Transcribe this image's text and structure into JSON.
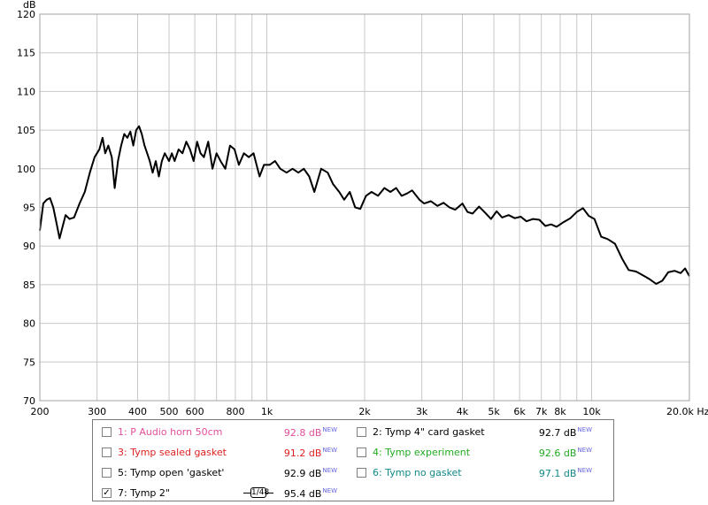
{
  "chart_data": {
    "type": "line",
    "title": "",
    "xlabel": "",
    "ylabel": "dB",
    "x_unit": "Hz",
    "x_scale": "log",
    "xlim": [
      200,
      20000
    ],
    "ylim": [
      70,
      120
    ],
    "grid": true,
    "x_ticks": [
      {
        "v": 200,
        "t": "200"
      },
      {
        "v": 300,
        "t": "300"
      },
      {
        "v": 400,
        "t": "400"
      },
      {
        "v": 500,
        "t": "500"
      },
      {
        "v": 600,
        "t": "600"
      },
      {
        "v": 800,
        "t": "800"
      },
      {
        "v": 1000,
        "t": "1k"
      },
      {
        "v": 2000,
        "t": "2k"
      },
      {
        "v": 3000,
        "t": "3k"
      },
      {
        "v": 4000,
        "t": "4k"
      },
      {
        "v": 5000,
        "t": "5k"
      },
      {
        "v": 6000,
        "t": "6k"
      },
      {
        "v": 7000,
        "t": "7k"
      },
      {
        "v": 8000,
        "t": "8k"
      },
      {
        "v": 10000,
        "t": "10k"
      },
      {
        "v": 20000,
        "t": "20.0k Hz"
      }
    ],
    "x_gridlines": [
      200,
      300,
      400,
      500,
      600,
      700,
      800,
      900,
      1000,
      2000,
      3000,
      4000,
      5000,
      6000,
      7000,
      8000,
      9000,
      10000,
      20000
    ],
    "y_ticks": [
      70,
      75,
      80,
      85,
      90,
      95,
      100,
      105,
      110,
      115,
      120
    ],
    "series": [
      {
        "name": "7: Tymp 2\"",
        "color": "#000000",
        "points": [
          [
            200,
            92
          ],
          [
            205,
            95.5
          ],
          [
            210,
            96
          ],
          [
            215,
            96.2
          ],
          [
            220,
            95
          ],
          [
            225,
            93
          ],
          [
            230,
            91
          ],
          [
            235,
            92.5
          ],
          [
            240,
            94
          ],
          [
            247,
            93.5
          ],
          [
            255,
            93.7
          ],
          [
            265,
            95.5
          ],
          [
            275,
            97
          ],
          [
            285,
            99.5
          ],
          [
            295,
            101.5
          ],
          [
            305,
            102.5
          ],
          [
            312,
            104
          ],
          [
            318,
            102
          ],
          [
            325,
            103
          ],
          [
            333,
            101.5
          ],
          [
            340,
            97.5
          ],
          [
            348,
            101
          ],
          [
            356,
            103
          ],
          [
            364,
            104.5
          ],
          [
            372,
            104
          ],
          [
            380,
            104.8
          ],
          [
            388,
            103
          ],
          [
            396,
            105
          ],
          [
            404,
            105.5
          ],
          [
            412,
            104.5
          ],
          [
            420,
            103
          ],
          [
            428,
            102
          ],
          [
            436,
            101
          ],
          [
            445,
            99.5
          ],
          [
            455,
            101
          ],
          [
            465,
            99
          ],
          [
            475,
            101
          ],
          [
            485,
            102
          ],
          [
            500,
            101
          ],
          [
            510,
            102
          ],
          [
            520,
            101
          ],
          [
            535,
            102.5
          ],
          [
            550,
            102
          ],
          [
            565,
            103.5
          ],
          [
            580,
            102.5
          ],
          [
            595,
            101
          ],
          [
            610,
            103.5
          ],
          [
            625,
            102
          ],
          [
            640,
            101.5
          ],
          [
            660,
            103.5
          ],
          [
            680,
            100
          ],
          [
            700,
            102
          ],
          [
            720,
            101
          ],
          [
            745,
            100
          ],
          [
            770,
            103
          ],
          [
            795,
            102.5
          ],
          [
            820,
            100.5
          ],
          [
            850,
            102
          ],
          [
            880,
            101.5
          ],
          [
            910,
            102
          ],
          [
            950,
            99
          ],
          [
            980,
            100.5
          ],
          [
            1020,
            100.5
          ],
          [
            1060,
            101
          ],
          [
            1100,
            100
          ],
          [
            1150,
            99.5
          ],
          [
            1200,
            100
          ],
          [
            1250,
            99.5
          ],
          [
            1300,
            100
          ],
          [
            1350,
            99
          ],
          [
            1400,
            97
          ],
          [
            1470,
            100
          ],
          [
            1540,
            99.5
          ],
          [
            1600,
            98
          ],
          [
            1670,
            97
          ],
          [
            1730,
            96
          ],
          [
            1800,
            97
          ],
          [
            1870,
            95
          ],
          [
            1940,
            94.8
          ],
          [
            2020,
            96.5
          ],
          [
            2100,
            97
          ],
          [
            2200,
            96.5
          ],
          [
            2300,
            97.5
          ],
          [
            2400,
            97
          ],
          [
            2500,
            97.5
          ],
          [
            2600,
            96.5
          ],
          [
            2700,
            96.8
          ],
          [
            2800,
            97.2
          ],
          [
            2950,
            96
          ],
          [
            3050,
            95.5
          ],
          [
            3200,
            95.8
          ],
          [
            3350,
            95.2
          ],
          [
            3500,
            95.6
          ],
          [
            3650,
            95
          ],
          [
            3800,
            94.7
          ],
          [
            4000,
            95.5
          ],
          [
            4150,
            94.4
          ],
          [
            4300,
            94.2
          ],
          [
            4500,
            95.1
          ],
          [
            4700,
            94.3
          ],
          [
            4900,
            93.5
          ],
          [
            5100,
            94.5
          ],
          [
            5300,
            93.7
          ],
          [
            5550,
            94
          ],
          [
            5800,
            93.6
          ],
          [
            6050,
            93.8
          ],
          [
            6300,
            93.2
          ],
          [
            6600,
            93.5
          ],
          [
            6900,
            93.4
          ],
          [
            7200,
            92.6
          ],
          [
            7500,
            92.8
          ],
          [
            7800,
            92.5
          ],
          [
            8200,
            93.1
          ],
          [
            8600,
            93.6
          ],
          [
            9000,
            94.4
          ],
          [
            9400,
            94.9
          ],
          [
            9800,
            93.9
          ],
          [
            10200,
            93.5
          ],
          [
            10700,
            91.2
          ],
          [
            11200,
            90.9
          ],
          [
            11800,
            90.3
          ],
          [
            12400,
            88.4
          ],
          [
            13000,
            86.9
          ],
          [
            13700,
            86.7
          ],
          [
            14400,
            86.2
          ],
          [
            15100,
            85.7
          ],
          [
            15800,
            85.1
          ],
          [
            16500,
            85.5
          ],
          [
            17200,
            86.6
          ],
          [
            18000,
            86.8
          ],
          [
            18800,
            86.5
          ],
          [
            19400,
            87.1
          ],
          [
            20000,
            86.1
          ]
        ]
      }
    ]
  },
  "legend": {
    "entries": [
      {
        "label": "1: P Audio horn 50cm",
        "value": "92.8 dB",
        "badge": "NEW",
        "checked": false,
        "color": "#e0509a",
        "label_color": "#e0509a",
        "value_color": "#e0509a"
      },
      {
        "label": "2: Tymp 4\" card gasket",
        "value": "92.7 dB",
        "badge": "NEW",
        "checked": false,
        "color": "#000000",
        "label_color": "#000000",
        "value_color": "#000000"
      },
      {
        "label": "3: Tymp sealed gasket",
        "value": "91.2 dB",
        "badge": "NEW",
        "checked": false,
        "color": "#dd2222",
        "label_color": "#dd2222",
        "value_color": "#dd2222"
      },
      {
        "label": "4: Tymp experiment",
        "value": "92.6 dB",
        "badge": "NEW",
        "checked": false,
        "color": "#22aa22",
        "label_color": "#22aa22",
        "value_color": "#22aa22"
      },
      {
        "label": "5: Tymp open 'gasket'",
        "value": "92.9 dB",
        "badge": "NEW",
        "checked": false,
        "color": "#000000",
        "label_color": "#000000",
        "value_color": "#000000"
      },
      {
        "label": "6: Tymp no gasket",
        "value": "97.1 dB",
        "badge": "NEW",
        "checked": false,
        "color": "#118888",
        "label_color": "#118888",
        "value_color": "#118888"
      },
      {
        "label": "7: Tymp 2\"",
        "value": "95.4 dB",
        "badge": "NEW",
        "checked": true,
        "color": "#000000",
        "label_color": "#000000",
        "value_color": "#000000",
        "smoothing": "1/48"
      }
    ],
    "checkmark": "✓"
  },
  "colors": {
    "grid": "#c8c8c8",
    "plot_border": "#a0a0a0",
    "badge": "#6666dd"
  }
}
